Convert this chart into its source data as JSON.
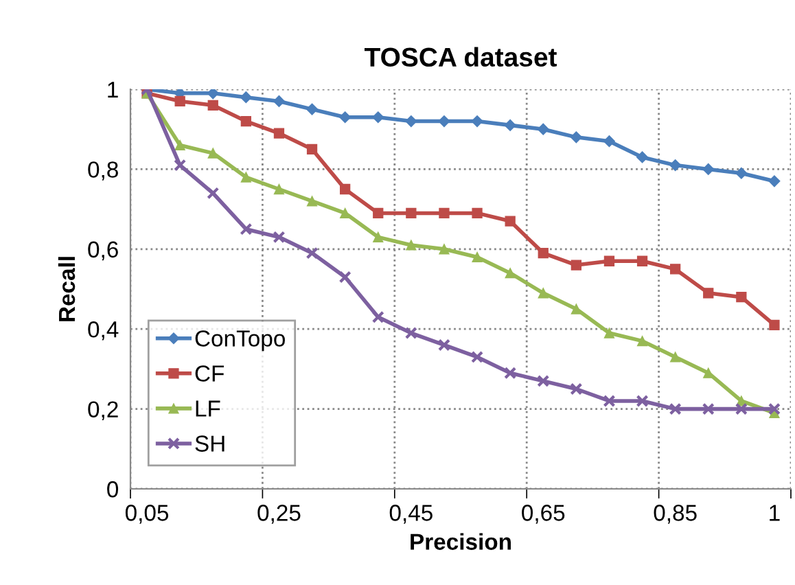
{
  "chart_data": {
    "type": "line",
    "title": "TOSCA dataset",
    "xlabel": "Precision",
    "ylabel": "Recall",
    "categories": [
      "0,05",
      null,
      null,
      null,
      "0,25",
      null,
      null,
      null,
      "0,45",
      null,
      null,
      null,
      "0,65",
      null,
      null,
      null,
      "0,85",
      null,
      null,
      "1"
    ],
    "series": [
      {
        "name": "ConTopo",
        "color": "#4a7ebb",
        "marker": "diamond",
        "values": [
          1.0,
          0.99,
          0.99,
          0.98,
          0.97,
          0.95,
          0.93,
          0.93,
          0.92,
          0.92,
          0.92,
          0.91,
          0.9,
          0.88,
          0.87,
          0.83,
          0.81,
          0.8,
          0.79,
          0.77
        ]
      },
      {
        "name": "CF",
        "color": "#be4b48",
        "marker": "square",
        "values": [
          0.99,
          0.97,
          0.96,
          0.92,
          0.89,
          0.85,
          0.75,
          0.69,
          0.69,
          0.69,
          0.69,
          0.67,
          0.59,
          0.56,
          0.57,
          0.57,
          0.55,
          0.49,
          0.48,
          0.41
        ]
      },
      {
        "name": "LF",
        "color": "#98b954",
        "marker": "triangle",
        "values": [
          0.99,
          0.86,
          0.84,
          0.78,
          0.75,
          0.72,
          0.69,
          0.63,
          0.61,
          0.6,
          0.58,
          0.54,
          0.49,
          0.45,
          0.39,
          0.37,
          0.33,
          0.29,
          0.22,
          0.19
        ]
      },
      {
        "name": "SH",
        "color": "#7d60a0",
        "marker": "cross",
        "values": [
          1.0,
          0.81,
          0.74,
          0.65,
          0.63,
          0.59,
          0.53,
          0.43,
          0.39,
          0.36,
          0.33,
          0.29,
          0.27,
          0.25,
          0.22,
          0.22,
          0.2,
          0.2,
          0.2,
          0.2
        ]
      }
    ],
    "ylim": [
      0,
      1
    ],
    "yticks": [
      0,
      {
        "value": 0.2,
        "label": "0,2"
      },
      {
        "value": 0.4,
        "label": "0,4"
      },
      {
        "value": 0.6,
        "label": "0,6"
      },
      {
        "value": 0.8,
        "label": "0,8"
      },
      1
    ],
    "grid": true,
    "legend": "bottom left",
    "line_style": "solid"
  }
}
